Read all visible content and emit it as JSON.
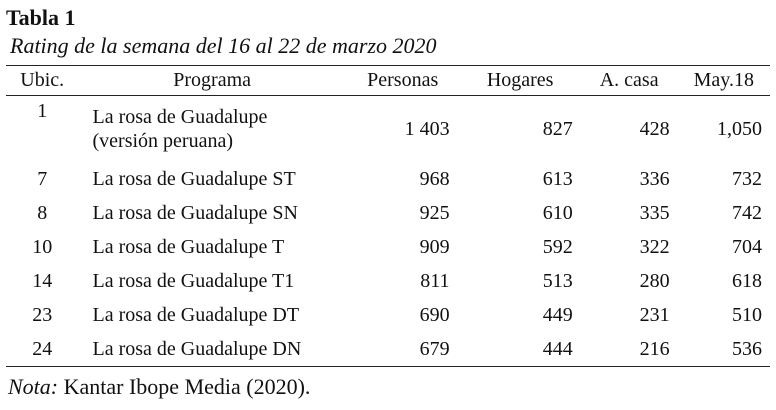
{
  "table": {
    "number": "Tabla 1",
    "caption": "Rating de la semana del 16 al 22 de marzo 2020",
    "headers": [
      "Ubic.",
      "Programa",
      "Personas",
      "Hogares",
      "A. casa",
      "May.18"
    ],
    "rows": [
      {
        "ubic": "1",
        "programa": "La rosa de Guadalupe",
        "programa_line2": "(versión peruana)",
        "personas": "1 403",
        "hogares": "827",
        "a_casa": "428",
        "may18": "1,050"
      },
      {
        "ubic": "7",
        "programa": "La rosa de Guadalupe ST",
        "personas": "968",
        "hogares": "613",
        "a_casa": "336",
        "may18": "732"
      },
      {
        "ubic": "8",
        "programa": "La rosa de Guadalupe SN",
        "personas": "925",
        "hogares": "610",
        "a_casa": "335",
        "may18": "742"
      },
      {
        "ubic": "10",
        "programa": "La rosa de Guadalupe T",
        "personas": "909",
        "hogares": "592",
        "a_casa": "322",
        "may18": "704"
      },
      {
        "ubic": "14",
        "programa": "La rosa de Guadalupe T1",
        "personas": "811",
        "hogares": "513",
        "a_casa": "280",
        "may18": "618"
      },
      {
        "ubic": "23",
        "programa": "La rosa de Guadalupe DT",
        "personas": "690",
        "hogares": "449",
        "a_casa": "231",
        "may18": "510"
      },
      {
        "ubic": "24",
        "programa": "La rosa de Guadalupe DN",
        "personas": "679",
        "hogares": "444",
        "a_casa": "216",
        "may18": "536"
      }
    ],
    "note_label": "Nota:",
    "note_text": " Kantar Ibope Media (2020)."
  }
}
